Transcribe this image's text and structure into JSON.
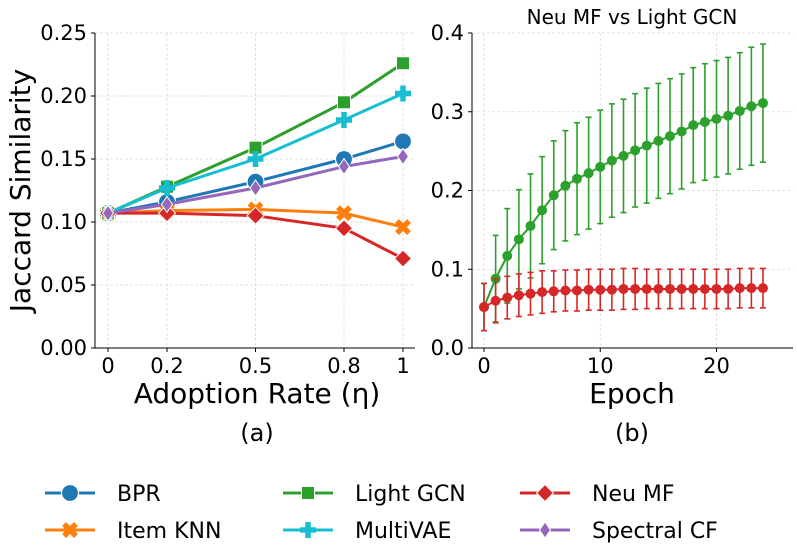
{
  "chart_data": [
    {
      "type": "line",
      "panel_caption": "(a)",
      "title": "",
      "xlabel": "Adoption Rate (η)",
      "ylabel": "Jaccard Similarity",
      "x": [
        0,
        0.2,
        0.5,
        0.8,
        1
      ],
      "x_tick_labels": [
        "0",
        "0.2",
        "0.5",
        "0.8",
        "1"
      ],
      "ylim": [
        0,
        0.25
      ],
      "y_ticks": [
        0,
        0.05,
        0.1,
        0.15,
        0.2,
        0.25
      ],
      "y_tick_labels": [
        "0.00",
        "0.05",
        "0.10",
        "0.15",
        "0.20",
        "0.25"
      ],
      "grid": true,
      "series": [
        {
          "name": "BPR",
          "color": "#1f77b4",
          "marker": "circle",
          "values": [
            0.107,
            0.116,
            0.132,
            0.15,
            0.164
          ]
        },
        {
          "name": "Item KNN",
          "color": "#ff7f0e",
          "marker": "x",
          "values": [
            0.107,
            0.109,
            0.11,
            0.107,
            0.096
          ]
        },
        {
          "name": "Light GCN",
          "color": "#2ca02c",
          "marker": "square",
          "values": [
            0.107,
            0.128,
            0.159,
            0.195,
            0.226
          ]
        },
        {
          "name": "MultiVAE",
          "color": "#17becf",
          "marker": "plus",
          "values": [
            0.107,
            0.127,
            0.15,
            0.181,
            0.202
          ]
        },
        {
          "name": "Neu MF",
          "color": "#d62728",
          "marker": "diamond",
          "values": [
            0.107,
            0.107,
            0.105,
            0.095,
            0.071
          ]
        },
        {
          "name": "Spectral CF",
          "color": "#9467bd",
          "marker": "thin_diamond",
          "values": [
            0.107,
            0.114,
            0.127,
            0.144,
            0.152
          ]
        }
      ]
    },
    {
      "type": "line",
      "panel_caption": "(b)",
      "title": "Neu MF vs Light GCN",
      "xlabel": "Epoch",
      "ylabel": "",
      "xlim": [
        -1,
        25
      ],
      "x_ticks": [
        0,
        10,
        20
      ],
      "x_tick_labels": [
        "0",
        "10",
        "20"
      ],
      "ylim": [
        0,
        0.4
      ],
      "y_ticks": [
        0,
        0.1,
        0.2,
        0.3,
        0.4
      ],
      "y_tick_labels": [
        "0.0",
        "0.1",
        "0.2",
        "0.3",
        "0.4"
      ],
      "grid": true,
      "error_bars": true,
      "x": [
        0,
        1,
        2,
        3,
        4,
        5,
        6,
        7,
        8,
        9,
        10,
        11,
        12,
        13,
        14,
        15,
        16,
        17,
        18,
        19,
        20,
        21,
        22,
        23,
        24
      ],
      "series": [
        {
          "name": "Light GCN",
          "color": "#2ca02c",
          "marker": "circle",
          "values": [
            0.052,
            0.088,
            0.117,
            0.138,
            0.155,
            0.175,
            0.194,
            0.206,
            0.215,
            0.222,
            0.23,
            0.238,
            0.244,
            0.251,
            0.257,
            0.263,
            0.269,
            0.275,
            0.283,
            0.287,
            0.291,
            0.295,
            0.301,
            0.307,
            0.311
          ],
          "errors": [
            0.03,
            0.055,
            0.06,
            0.063,
            0.066,
            0.068,
            0.069,
            0.07,
            0.071,
            0.071,
            0.072,
            0.072,
            0.072,
            0.072,
            0.073,
            0.073,
            0.073,
            0.073,
            0.073,
            0.074,
            0.074,
            0.074,
            0.074,
            0.075,
            0.075
          ]
        },
        {
          "name": "Neu MF",
          "color": "#d62728",
          "marker": "circle",
          "values": [
            0.052,
            0.06,
            0.064,
            0.067,
            0.069,
            0.071,
            0.072,
            0.073,
            0.073,
            0.074,
            0.074,
            0.074,
            0.075,
            0.075,
            0.075,
            0.075,
            0.075,
            0.075,
            0.075,
            0.075,
            0.075,
            0.075,
            0.076,
            0.076,
            0.076
          ],
          "errors": [
            0.03,
            0.028,
            0.027,
            0.027,
            0.027,
            0.027,
            0.026,
            0.026,
            0.026,
            0.026,
            0.026,
            0.026,
            0.026,
            0.026,
            0.025,
            0.025,
            0.025,
            0.025,
            0.025,
            0.025,
            0.025,
            0.025,
            0.025,
            0.025,
            0.025
          ]
        }
      ]
    }
  ],
  "legend": {
    "placement": "bottom",
    "items": [
      {
        "label": "BPR",
        "color": "#1f77b4",
        "marker": "circle"
      },
      {
        "label": "Light GCN",
        "color": "#2ca02c",
        "marker": "square"
      },
      {
        "label": "Neu MF",
        "color": "#d62728",
        "marker": "diamond"
      },
      {
        "label": "Item KNN",
        "color": "#ff7f0e",
        "marker": "x"
      },
      {
        "label": "MultiVAE",
        "color": "#17becf",
        "marker": "plus"
      },
      {
        "label": "Spectral CF",
        "color": "#9467bd",
        "marker": "thin_diamond"
      }
    ]
  }
}
